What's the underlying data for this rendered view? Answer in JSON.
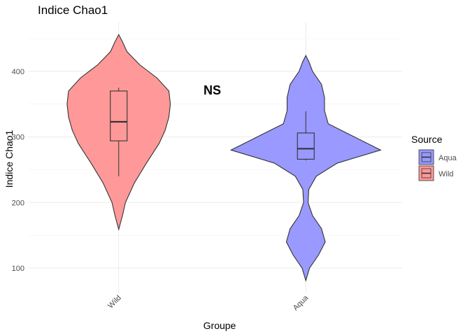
{
  "chart_data": {
    "type": "violin",
    "title": "Indice Chao1",
    "x_label": "Groupe",
    "y_label": "Indice Chao1",
    "categories": [
      "Wild",
      "Aqua"
    ],
    "ylim": [
      62,
      475
    ],
    "yticks": [
      100,
      200,
      300,
      400
    ],
    "minor_yticks": [
      150,
      250,
      350,
      450
    ],
    "grid": true,
    "annotation": "NS",
    "annotation_y": 372,
    "legend_title": "Source",
    "legend_position": "right",
    "series": [
      {
        "name": "Wild",
        "color": "#ff9999",
        "category": "Wild",
        "box": {
          "min": 240,
          "q1": 294,
          "median": 323,
          "q3": 370,
          "max": 375
        },
        "density_y": [
          159,
          180,
          200,
          230,
          260,
          290,
          310,
          330,
          350,
          370,
          390,
          410,
          430,
          445,
          456
        ],
        "density": [
          0,
          0.05,
          0.09,
          0.21,
          0.37,
          0.54,
          0.62,
          0.67,
          0.69,
          0.67,
          0.51,
          0.28,
          0.11,
          0.05,
          0
        ]
      },
      {
        "name": "Aqua",
        "color": "#9999ff",
        "category": "Aqua",
        "box": {
          "min": 264,
          "q1": 266,
          "median": 282,
          "q3": 306,
          "max": 339
        },
        "density_y": [
          81,
          100,
          120,
          140,
          160,
          180,
          200,
          220,
          240,
          260,
          280,
          300,
          320,
          340,
          360,
          380,
          400,
          415,
          424
        ],
        "density": [
          0,
          0.05,
          0.17,
          0.26,
          0.21,
          0.09,
          0.03,
          0.04,
          0.14,
          0.42,
          1,
          0.65,
          0.3,
          0.25,
          0.25,
          0.21,
          0.09,
          0.04,
          0
        ]
      }
    ]
  }
}
